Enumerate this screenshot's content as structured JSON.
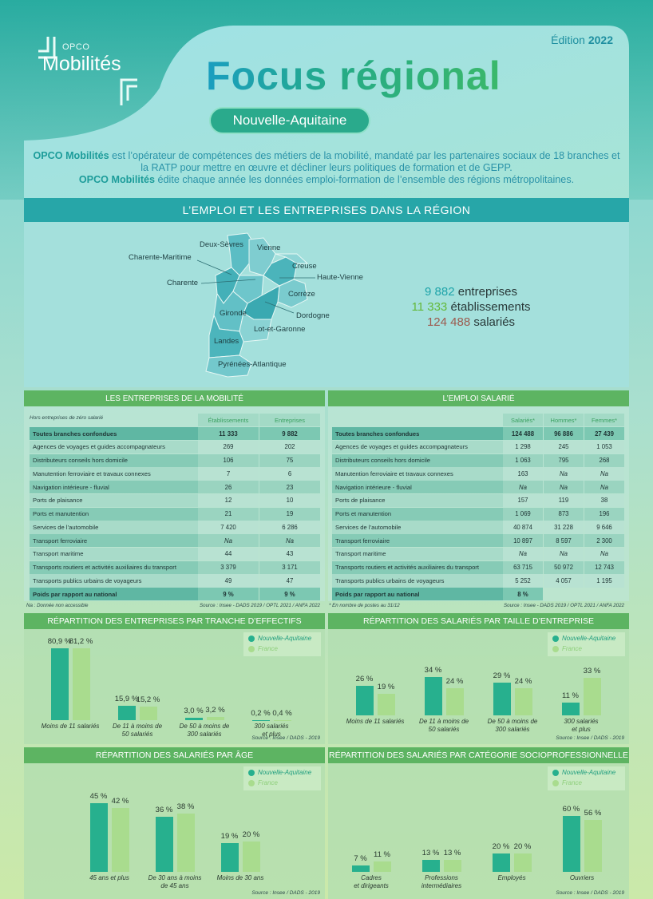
{
  "header": {
    "edition_label": "Édition",
    "edition_year": "2022",
    "logo_small": "OPCO",
    "logo_big": "Mobilités",
    "title": "Focus régional",
    "region": "Nouvelle-Aquitaine"
  },
  "intro": [
    {
      "bold": "OPCO Mobilités",
      "text": " est l’opérateur de compétences des métiers de la mobilité, mandaté par les partenaires sociaux de 18 branches et la RATP pour mettre en œuvre et décliner leurs politiques de formation et de GEPP."
    },
    {
      "bold": "OPCO Mobilités",
      "text": " édite chaque année les données emploi-formation de l’ensemble des régions métropolitaines."
    }
  ],
  "section_title": "L’EMPLOI ET LES ENTREPRISES DANS LA RÉGION",
  "map_labels": [
    "Deux-Sèvres",
    "Vienne",
    "Charente-Maritime",
    "Creuse",
    "Haute-Vienne",
    "Charente",
    "Corrèze",
    "Gironde",
    "Dordogne",
    "Lot-et-Garonne",
    "Landes",
    "Pyrénées-Atlantique"
  ],
  "stats": [
    {
      "value": "9 882",
      "label": "entreprises",
      "color": "#1ea4aa"
    },
    {
      "value": "11 333",
      "label": "établissements",
      "color": "#63b83a"
    },
    {
      "value": "124 488",
      "label": "salariés",
      "color": "#9c5a4e"
    }
  ],
  "tables": [
    {
      "title": "LES ENTREPRISES DE LA MOBILITÉ",
      "note_top": "Hors entreprises de zéro salarié",
      "columns": [
        "Établissements",
        "Entreprises"
      ],
      "rows": [
        [
          "Toutes branches confondues",
          "11 333",
          "9 882"
        ],
        [
          "Agences de voyages et guides accompagnateurs",
          "269",
          "202"
        ],
        [
          "Distributeurs conseils hors domicile",
          "106",
          "75"
        ],
        [
          "Manutention ferroviaire et travaux connexes",
          "7",
          "6"
        ],
        [
          "Navigation intérieure - fluvial",
          "26",
          "23"
        ],
        [
          "Ports de plaisance",
          "12",
          "10"
        ],
        [
          "Ports et manutention",
          "21",
          "19"
        ],
        [
          "Services de l’automobile",
          "7 420",
          "6 286"
        ],
        [
          "Transport ferroviaire",
          "Na",
          "Na"
        ],
        [
          "Transport maritime",
          "44",
          "43"
        ],
        [
          "Transports routiers et activités auxiliaires du transport",
          "3 379",
          "3 171"
        ],
        [
          "Transports publics urbains de voyageurs",
          "49",
          "47"
        ],
        [
          "Poids par rapport au national",
          "9 %",
          "9 %"
        ]
      ],
      "note_bottom": "Na : Donnée non accessible",
      "source": "Source : Insee - DADS 2019 / OPTL 2021 / ANFA 2022"
    },
    {
      "title": "L’EMPLOI SALARIÉ",
      "note_top": null,
      "columns": [
        "Salariés*",
        "Hommes*",
        "Femmes*"
      ],
      "rows": [
        [
          "Toutes branches confondues",
          "124 488",
          "96 886",
          "27 439"
        ],
        [
          "Agences de voyages et guides accompagnateurs",
          "1 298",
          "245",
          "1 053"
        ],
        [
          "Distributeurs conseils hors domicile",
          "1 063",
          "795",
          "268"
        ],
        [
          "Manutention ferroviaire et travaux connexes",
          "163",
          "Na",
          "Na"
        ],
        [
          "Navigation intérieure - fluvial",
          "Na",
          "Na",
          "Na"
        ],
        [
          "Ports de plaisance",
          "157",
          "119",
          "38"
        ],
        [
          "Ports et manutention",
          "1 069",
          "873",
          "196"
        ],
        [
          "Services de l’automobile",
          "40 874",
          "31 228",
          "9 646"
        ],
        [
          "Transport ferroviaire",
          "10 897",
          "8 597",
          "2 300"
        ],
        [
          "Transport maritime",
          "Na",
          "Na",
          "Na"
        ],
        [
          "Transports routiers et activités auxiliaires du transport",
          "63 715",
          "50 972",
          "12 743"
        ],
        [
          "Transports publics urbains de voyageurs",
          "5 252",
          "4 057",
          "1 195"
        ],
        [
          "Poids par rapport au national",
          "8 %",
          null,
          null
        ]
      ],
      "note_bottom": "* En nombre de postes au 31/12",
      "source": "Source : Insee - DADS 2019 / OPTL 2021 / ANFA 2022"
    }
  ],
  "chart_data": [
    {
      "type": "bar",
      "title": "RÉPARTITION DES ENTREPRISES PAR TRANCHE D’EFFECTIFS",
      "categories": [
        "Moins de 11 salariés",
        "De 11 à moins de\n50 salariés",
        "De 50 à moins de\n300 salariés",
        "300 salariés\net plus"
      ],
      "series": [
        {
          "name": "Nouvelle-Aquitaine",
          "color": "#27b08e",
          "values": [
            80.9,
            15.9,
            3.0,
            0.2
          ],
          "value_labels": [
            "80,9 %",
            "15,9 %",
            "3,0 %",
            "0,2 %"
          ]
        },
        {
          "name": "France",
          "color": "#a9dc8e",
          "values": [
            81.2,
            15.2,
            3.2,
            0.4
          ],
          "value_labels": [
            "81,2 %",
            "15,2 %",
            "3,2 %",
            "0,4 %"
          ]
        }
      ],
      "source": "Source : Insee / DADS - 2019"
    },
    {
      "type": "bar",
      "title": "RÉPARTITION DES SALARIÉS PAR TAILLE D’ENTREPRISE",
      "categories": [
        "Moins de 11 salariés",
        "De 11 à moins de\n50 salariés",
        "De 50 à moins de\n300 salariés",
        "300 salariés\net plus"
      ],
      "series": [
        {
          "name": "Nouvelle-Aquitaine",
          "color": "#27b08e",
          "values": [
            26,
            34,
            29,
            11
          ],
          "value_labels": [
            "26 %",
            "34 %",
            "29 %",
            "11 %"
          ]
        },
        {
          "name": "France",
          "color": "#a9dc8e",
          "values": [
            19,
            24,
            24,
            33
          ],
          "value_labels": [
            "19 %",
            "24 %",
            "24 %",
            "33 %"
          ]
        }
      ],
      "source": "Source : Insee / DADS - 2019"
    },
    {
      "type": "bar",
      "title": "RÉPARTITION DES SALARIÉS PAR ÂGE",
      "categories": [
        "45 ans et plus",
        "De 30 ans à moins\nde 45 ans",
        "Moins de 30 ans"
      ],
      "series": [
        {
          "name": "Nouvelle-Aquitaine",
          "color": "#27b08e",
          "values": [
            45,
            36,
            19
          ],
          "value_labels": [
            "45 %",
            "36 %",
            "19 %"
          ]
        },
        {
          "name": "France",
          "color": "#a9dc8e",
          "values": [
            42,
            38,
            20
          ],
          "value_labels": [
            "42 %",
            "38 %",
            "20 %"
          ]
        }
      ],
      "source": "Source : Insee / DADS - 2019"
    },
    {
      "type": "bar",
      "title": "RÉPARTITION DES SALARIÉS PAR CATÉGORIE SOCIOPROFESSIONNELLE",
      "categories": [
        "Cadres\net dirigeants",
        "Professions\nintermédiaires",
        "Employés",
        "Ouvriers"
      ],
      "series": [
        {
          "name": "Nouvelle-Aquitaine",
          "color": "#27b08e",
          "values": [
            7,
            13,
            20,
            60
          ],
          "value_labels": [
            "7 %",
            "13 %",
            "20 %",
            "60 %"
          ]
        },
        {
          "name": "France",
          "color": "#a9dc8e",
          "values": [
            11,
            13,
            20,
            56
          ],
          "value_labels": [
            "11 %",
            "13 %",
            "20 %",
            "56 %"
          ]
        }
      ],
      "source": "Source : Insee / DADS - 2019"
    }
  ]
}
